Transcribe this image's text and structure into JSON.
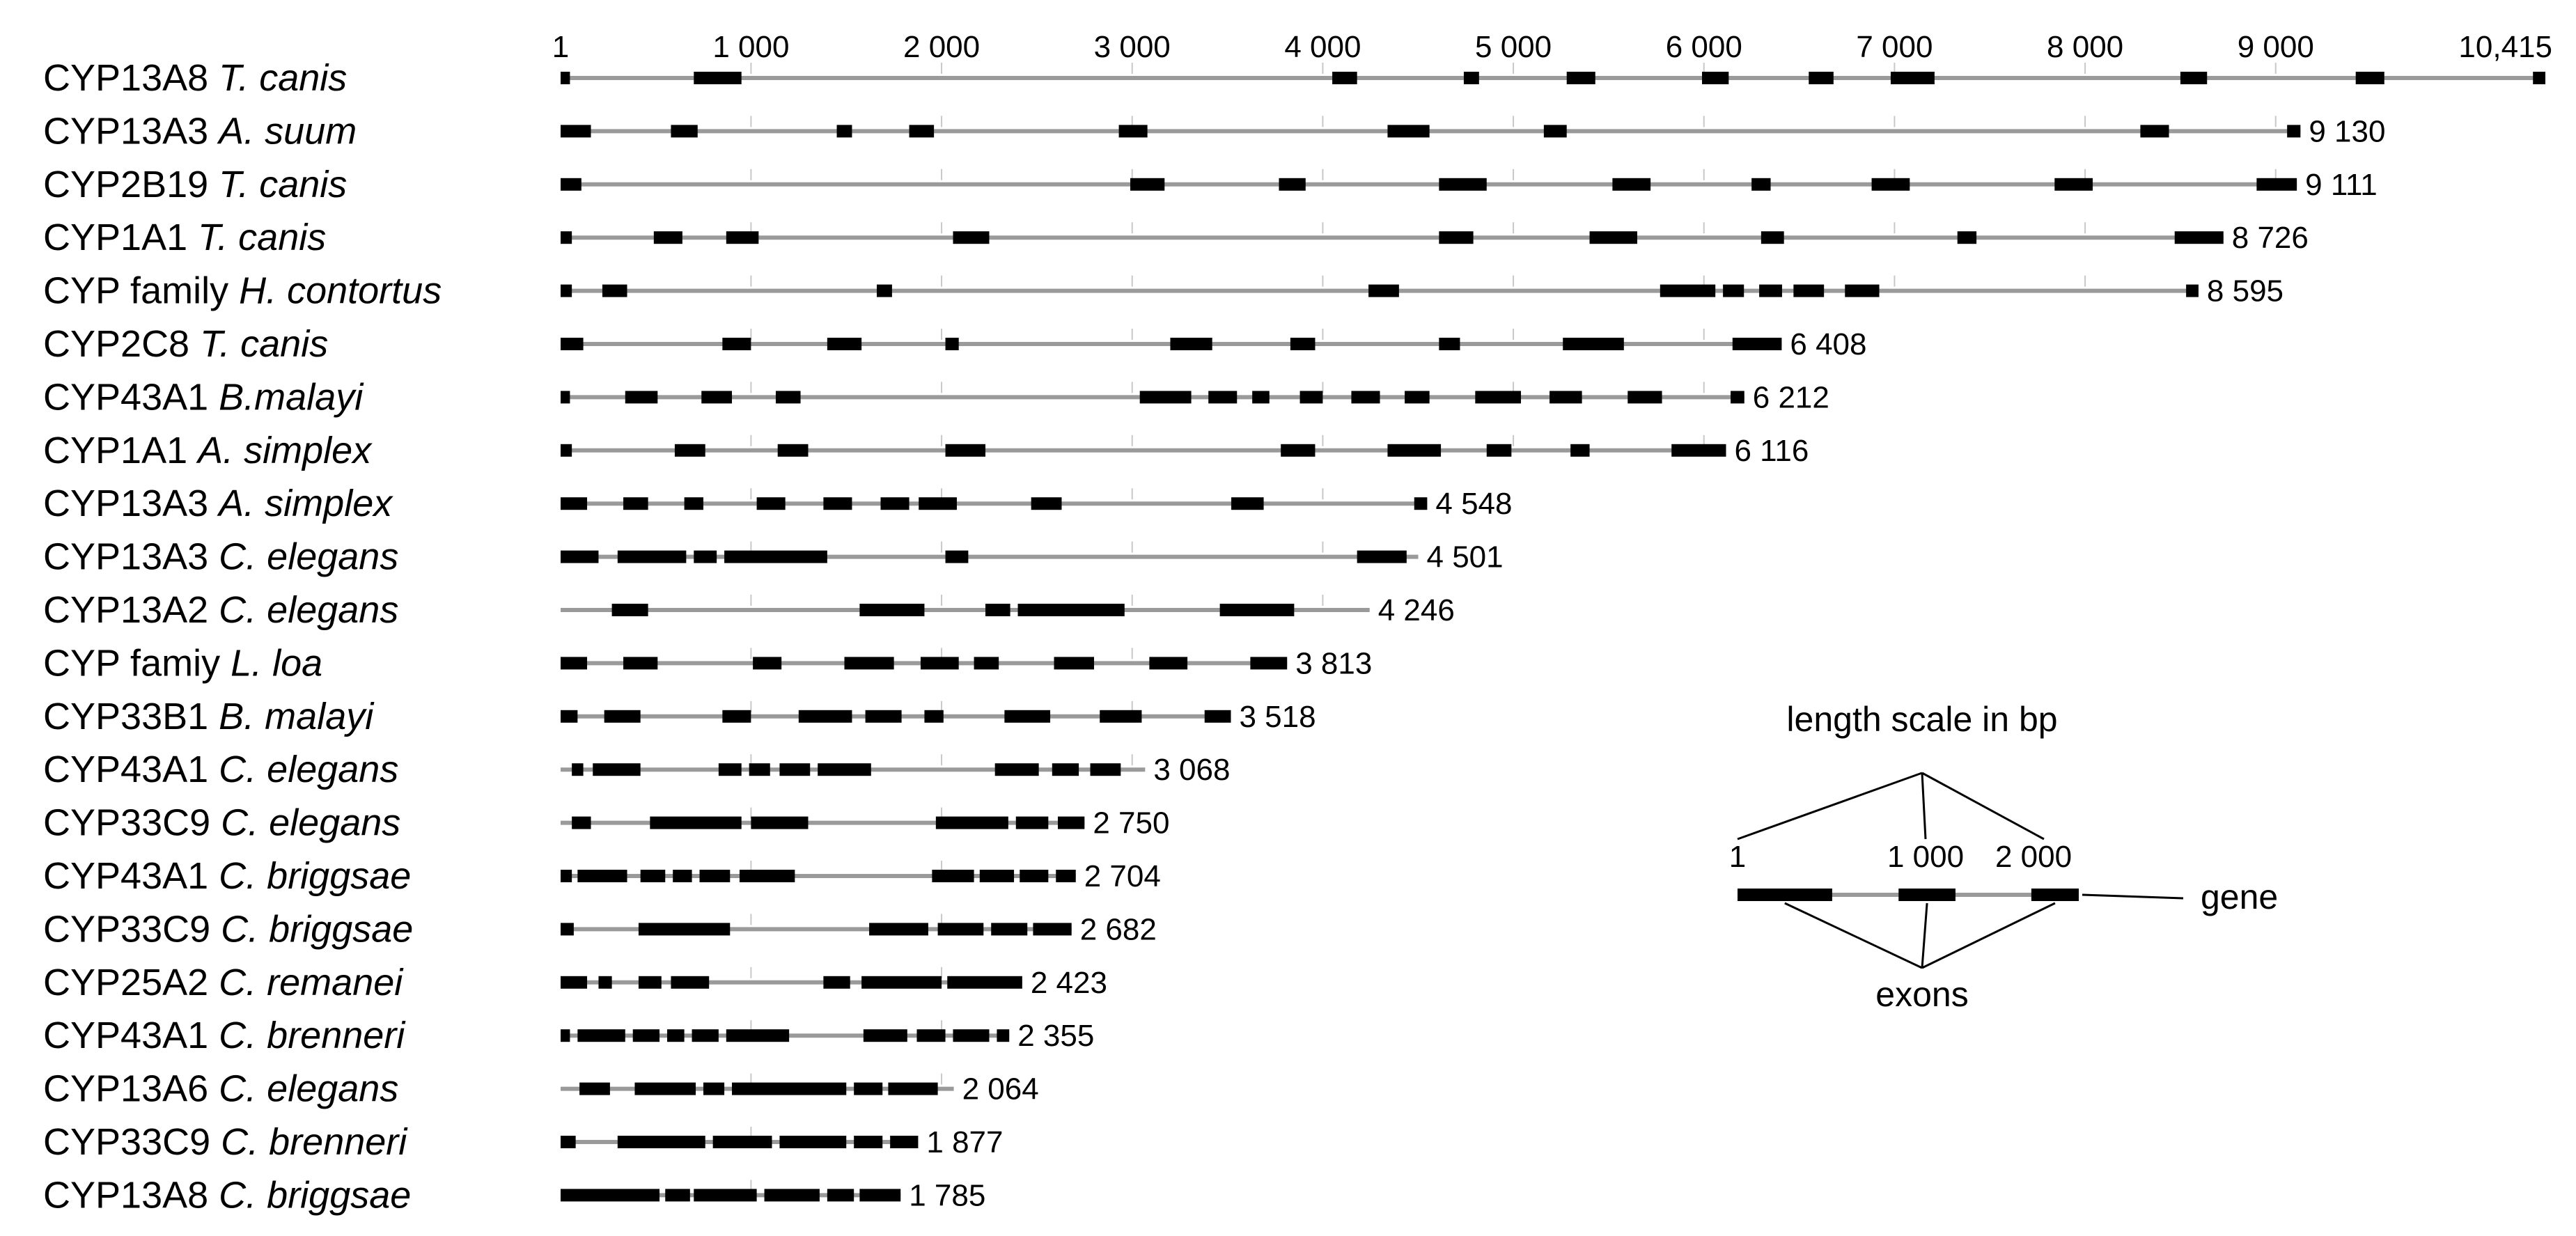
{
  "chart_data": {
    "type": "gene-structure",
    "axis": {
      "min": 1,
      "max": 10415,
      "ticks": [
        {
          "value": 1,
          "label": "1"
        },
        {
          "value": 1000,
          "label": "1 000"
        },
        {
          "value": 2000,
          "label": "2 000"
        },
        {
          "value": 3000,
          "label": "3 000"
        },
        {
          "value": 4000,
          "label": "4 000"
        },
        {
          "value": 5000,
          "label": "5 000"
        },
        {
          "value": 6000,
          "label": "6 000"
        },
        {
          "value": 7000,
          "label": "7 000"
        },
        {
          "value": 8000,
          "label": "8 000"
        },
        {
          "value": 9000,
          "label": "9 000"
        },
        {
          "value": 10415,
          "label": "10,415"
        }
      ]
    },
    "genes": [
      {
        "name": "CYP13A8",
        "species": "T. canis",
        "length": 10415,
        "length_label": "",
        "exons": [
          [
            1,
            50
          ],
          [
            700,
            950
          ],
          [
            4050,
            4180
          ],
          [
            4740,
            4820
          ],
          [
            5280,
            5430
          ],
          [
            5990,
            6130
          ],
          [
            6550,
            6680
          ],
          [
            6980,
            7210
          ],
          [
            8500,
            8640
          ],
          [
            9420,
            9570
          ],
          [
            10350,
            10415
          ]
        ]
      },
      {
        "name": "CYP13A3",
        "species": "A. suum",
        "length": 9130,
        "length_label": "9 130",
        "exons": [
          [
            1,
            160
          ],
          [
            580,
            720
          ],
          [
            1450,
            1530
          ],
          [
            1830,
            1960
          ],
          [
            2930,
            3080
          ],
          [
            4340,
            4560
          ],
          [
            5160,
            5280
          ],
          [
            8290,
            8440
          ],
          [
            9060,
            9130
          ]
        ]
      },
      {
        "name": "CYP2B19",
        "species": "T. canis",
        "length": 9111,
        "length_label": "9 111",
        "exons": [
          [
            1,
            110
          ],
          [
            2990,
            3170
          ],
          [
            3770,
            3910
          ],
          [
            4610,
            4860
          ],
          [
            5520,
            5720
          ],
          [
            6250,
            6350
          ],
          [
            6880,
            7080
          ],
          [
            7840,
            8040
          ],
          [
            8900,
            9111
          ]
        ]
      },
      {
        "name": "CYP1A1",
        "species": "T. canis",
        "length": 8726,
        "length_label": "8 726",
        "exons": [
          [
            1,
            60
          ],
          [
            490,
            640
          ],
          [
            870,
            1040
          ],
          [
            2060,
            2250
          ],
          [
            4610,
            4790
          ],
          [
            5400,
            5650
          ],
          [
            6300,
            6420
          ],
          [
            7330,
            7430
          ],
          [
            8470,
            8726
          ]
        ]
      },
      {
        "name": "CYP family",
        "species": "H. contortus",
        "length": 8595,
        "length_label": "8 595",
        "exons": [
          [
            1,
            60
          ],
          [
            220,
            350
          ],
          [
            1660,
            1740
          ],
          [
            4240,
            4400
          ],
          [
            5770,
            6060
          ],
          [
            6100,
            6210
          ],
          [
            6290,
            6410
          ],
          [
            6470,
            6630
          ],
          [
            6740,
            6920
          ],
          [
            8530,
            8595
          ]
        ]
      },
      {
        "name": "CYP2C8",
        "species": "T. canis",
        "length": 6408,
        "length_label": "6 408",
        "exons": [
          [
            1,
            120
          ],
          [
            850,
            1000
          ],
          [
            1400,
            1580
          ],
          [
            2020,
            2090
          ],
          [
            3200,
            3420
          ],
          [
            3830,
            3960
          ],
          [
            4610,
            4720
          ],
          [
            5260,
            5580
          ],
          [
            6150,
            6408
          ]
        ]
      },
      {
        "name": "CYP43A1",
        "species": "B.malayi",
        "length": 6212,
        "length_label": "6 212",
        "exons": [
          [
            1,
            50
          ],
          [
            340,
            510
          ],
          [
            740,
            900
          ],
          [
            1130,
            1260
          ],
          [
            3040,
            3310
          ],
          [
            3400,
            3550
          ],
          [
            3630,
            3720
          ],
          [
            3880,
            4000
          ],
          [
            4150,
            4300
          ],
          [
            4430,
            4560
          ],
          [
            4800,
            5040
          ],
          [
            5190,
            5360
          ],
          [
            5600,
            5780
          ],
          [
            6140,
            6212
          ]
        ]
      },
      {
        "name": "CYP1A1",
        "species": "A. simplex",
        "length": 6116,
        "length_label": "6 116",
        "exons": [
          [
            1,
            60
          ],
          [
            600,
            760
          ],
          [
            1140,
            1300
          ],
          [
            2020,
            2230
          ],
          [
            3780,
            3960
          ],
          [
            4340,
            4620
          ],
          [
            4860,
            4990
          ],
          [
            5300,
            5400
          ],
          [
            5830,
            6116
          ]
        ]
      },
      {
        "name": "CYP13A3",
        "species": "A. simplex",
        "length": 4548,
        "length_label": "4 548",
        "exons": [
          [
            1,
            140
          ],
          [
            330,
            460
          ],
          [
            650,
            750
          ],
          [
            1030,
            1180
          ],
          [
            1380,
            1530
          ],
          [
            1680,
            1830
          ],
          [
            1880,
            2080
          ],
          [
            2470,
            2630
          ],
          [
            3520,
            3690
          ],
          [
            4480,
            4548
          ]
        ]
      },
      {
        "name": "CYP13A3",
        "species": "C. elegans",
        "length": 4501,
        "length_label": "4 501",
        "exons": [
          [
            1,
            200
          ],
          [
            300,
            660
          ],
          [
            700,
            820
          ],
          [
            860,
            1400
          ],
          [
            2020,
            2140
          ],
          [
            4180,
            4440
          ]
        ]
      },
      {
        "name": "CYP13A2",
        "species": "C. elegans",
        "length": 4246,
        "length_label": "4 246",
        "exons": [
          [
            270,
            460
          ],
          [
            1570,
            1910
          ],
          [
            2230,
            2360
          ],
          [
            2400,
            2960
          ],
          [
            3460,
            3850
          ]
        ]
      },
      {
        "name": "CYP famiy",
        "species": "L. loa",
        "length": 3813,
        "length_label": "3 813",
        "exons": [
          [
            1,
            140
          ],
          [
            330,
            510
          ],
          [
            1010,
            1160
          ],
          [
            1490,
            1750
          ],
          [
            1890,
            2090
          ],
          [
            2170,
            2300
          ],
          [
            2590,
            2800
          ],
          [
            3090,
            3290
          ],
          [
            3620,
            3813
          ]
        ]
      },
      {
        "name": "CYP33B1",
        "species": "B. malayi",
        "length": 3518,
        "length_label": "3 518",
        "exons": [
          [
            1,
            90
          ],
          [
            230,
            420
          ],
          [
            850,
            1000
          ],
          [
            1250,
            1530
          ],
          [
            1600,
            1790
          ],
          [
            1910,
            2010
          ],
          [
            2330,
            2570
          ],
          [
            2830,
            3050
          ],
          [
            3380,
            3518
          ]
        ]
      },
      {
        "name": "CYP43A1",
        "species": "C. elegans",
        "length": 3068,
        "length_label": "3 068",
        "exons": [
          [
            60,
            120
          ],
          [
            170,
            420
          ],
          [
            830,
            950
          ],
          [
            990,
            1100
          ],
          [
            1150,
            1310
          ],
          [
            1350,
            1630
          ],
          [
            2280,
            2510
          ],
          [
            2580,
            2720
          ],
          [
            2780,
            2940
          ]
        ]
      },
      {
        "name": "CYP33C9",
        "species": "C. elegans",
        "length": 2750,
        "length_label": "2 750",
        "exons": [
          [
            60,
            160
          ],
          [
            470,
            950
          ],
          [
            1000,
            1300
          ],
          [
            1970,
            2350
          ],
          [
            2390,
            2560
          ],
          [
            2610,
            2750
          ]
        ]
      },
      {
        "name": "CYP43A1",
        "species": "C. briggsae",
        "length": 2704,
        "length_label": "2 704",
        "exons": [
          [
            1,
            60
          ],
          [
            90,
            350
          ],
          [
            420,
            550
          ],
          [
            590,
            690
          ],
          [
            730,
            890
          ],
          [
            940,
            1230
          ],
          [
            1950,
            2170
          ],
          [
            2200,
            2380
          ],
          [
            2410,
            2560
          ],
          [
            2600,
            2704
          ]
        ]
      },
      {
        "name": "CYP33C9",
        "species": "C. briggsae",
        "length": 2682,
        "length_label": "2 682",
        "exons": [
          [
            1,
            70
          ],
          [
            410,
            890
          ],
          [
            1620,
            1930
          ],
          [
            1980,
            2220
          ],
          [
            2260,
            2450
          ],
          [
            2480,
            2682
          ]
        ]
      },
      {
        "name": "CYP25A2",
        "species": "C. remanei",
        "length": 2423,
        "length_label": "2 423",
        "exons": [
          [
            1,
            140
          ],
          [
            200,
            270
          ],
          [
            410,
            530
          ],
          [
            580,
            780
          ],
          [
            1380,
            1520
          ],
          [
            1580,
            2000
          ],
          [
            2030,
            2423
          ]
        ]
      },
      {
        "name": "CYP43A1",
        "species": "C. brenneri",
        "length": 2355,
        "length_label": "2 355",
        "exons": [
          [
            1,
            50
          ],
          [
            90,
            340
          ],
          [
            380,
            520
          ],
          [
            560,
            650
          ],
          [
            690,
            830
          ],
          [
            870,
            1200
          ],
          [
            1590,
            1820
          ],
          [
            1870,
            2020
          ],
          [
            2060,
            2250
          ],
          [
            2290,
            2355
          ]
        ]
      },
      {
        "name": "CYP13A6",
        "species": "C. elegans",
        "length": 2064,
        "length_label": "2 064",
        "exons": [
          [
            100,
            260
          ],
          [
            390,
            710
          ],
          [
            750,
            860
          ],
          [
            900,
            1500
          ],
          [
            1540,
            1690
          ],
          [
            1720,
            1980
          ]
        ]
      },
      {
        "name": "CYP33C9",
        "species": "C. brenneri",
        "length": 1877,
        "length_label": "1 877",
        "exons": [
          [
            1,
            80
          ],
          [
            300,
            760
          ],
          [
            800,
            1110
          ],
          [
            1150,
            1500
          ],
          [
            1540,
            1690
          ],
          [
            1730,
            1877
          ]
        ]
      },
      {
        "name": "CYP13A8",
        "species": "C. briggsae",
        "length": 1785,
        "length_label": "1 785",
        "exons": [
          [
            1,
            520
          ],
          [
            550,
            680
          ],
          [
            700,
            1030
          ],
          [
            1070,
            1360
          ],
          [
            1400,
            1540
          ],
          [
            1570,
            1785
          ]
        ]
      }
    ],
    "legend": {
      "title": "length scale in bp",
      "gene_label": "gene",
      "exons_label": "exons",
      "min": 1,
      "max": 1800,
      "ticks": [
        {
          "value": 1,
          "label": "1"
        },
        {
          "value": 1000,
          "label": "1 000"
        },
        {
          "value": 2000,
          "label": "2 000"
        }
      ],
      "exons": [
        [
          1,
          500
        ],
        [
          850,
          1150
        ],
        [
          1550,
          1800
        ]
      ]
    }
  }
}
